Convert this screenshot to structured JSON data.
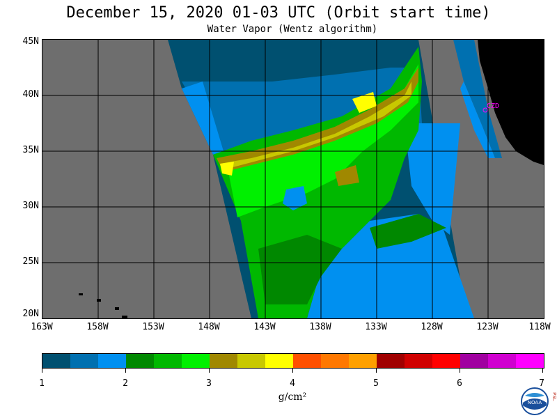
{
  "title": "December 15, 2020  01-03 UTC  (Orbit start time)",
  "subtitle": "Water Vapor (Wentz algorithm)",
  "map": {
    "lat_labels": [
      "45N",
      "40N",
      "35N",
      "30N",
      "25N",
      "20N"
    ],
    "lon_labels": [
      "163W",
      "158W",
      "153W",
      "148W",
      "143W",
      "138W",
      "133W",
      "128W",
      "123W",
      "118W"
    ],
    "station_label": "CZD",
    "colors": {
      "land": "#000000",
      "no_data": "#6e6e6e",
      "grid": "#000000",
      "station": "#ff00ff"
    }
  },
  "colorbar": {
    "colors": [
      "#005070",
      "#0070b0",
      "#0090f0",
      "#008800",
      "#00b800",
      "#00f000",
      "#a08800",
      "#c8c800",
      "#ffff00",
      "#ff5000",
      "#ff7800",
      "#ffa000",
      "#a00000",
      "#d00000",
      "#ff0000",
      "#a000a0",
      "#d000d0",
      "#ff00ff"
    ],
    "labels": [
      "1",
      "2",
      "3",
      "4",
      "5",
      "6",
      "7"
    ],
    "units": "g/cm²"
  },
  "logo": {
    "name": "noaa-logo",
    "text": "NOAA",
    "side_text": "PSL"
  }
}
